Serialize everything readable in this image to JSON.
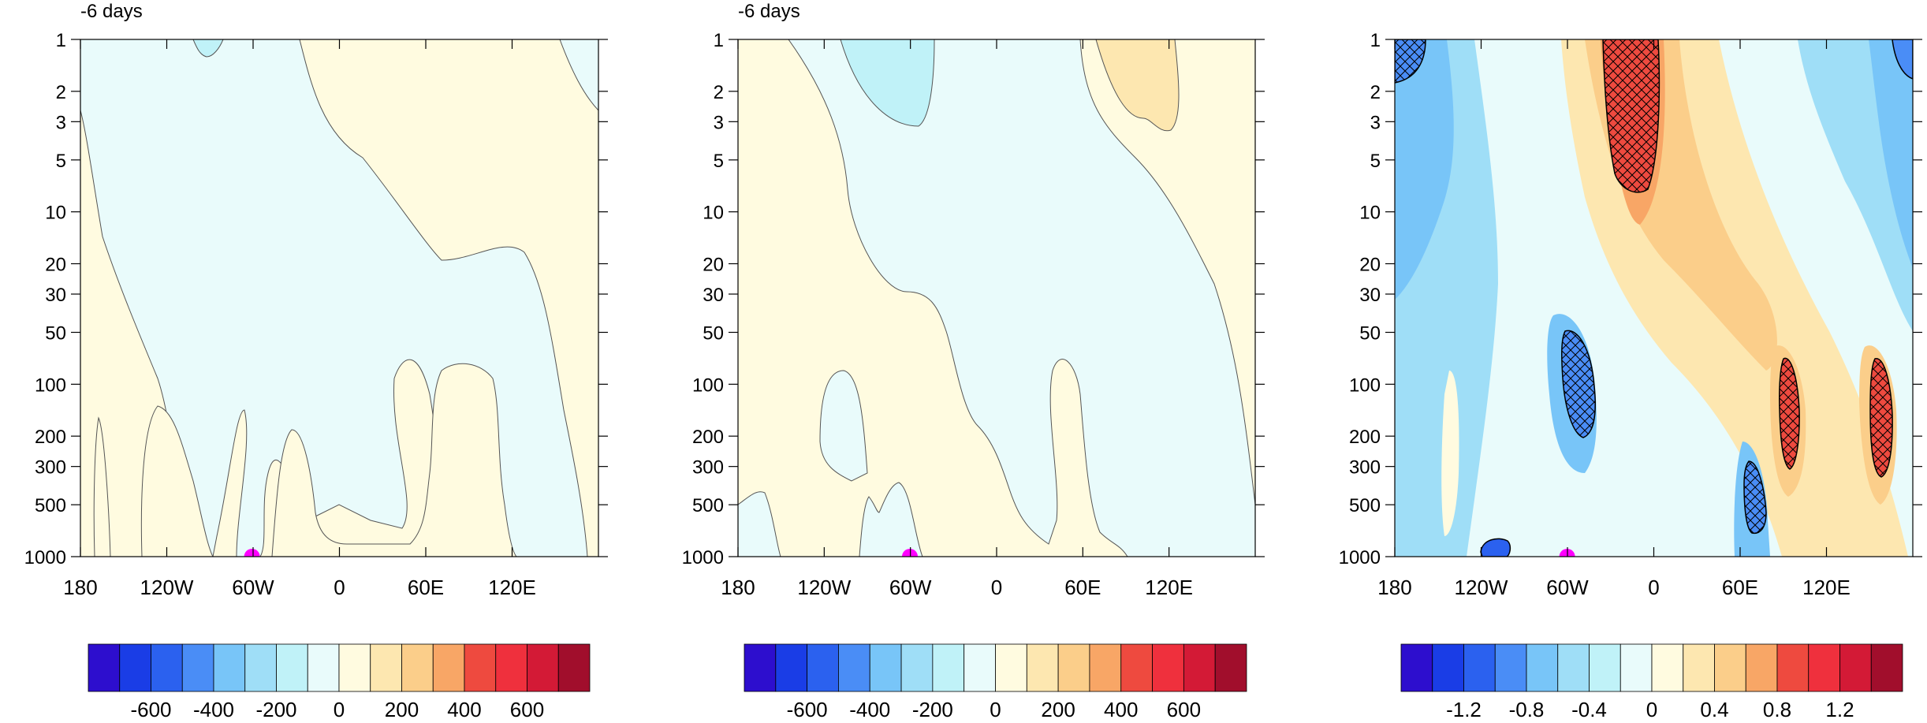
{
  "chart_data": [
    {
      "type": "heatmap",
      "title": "-6 days",
      "x_tick_labels": [
        "180",
        "120W",
        "60W",
        "0",
        "60E",
        "120E"
      ],
      "x_tick_values": [
        -180,
        -120,
        -60,
        0,
        60,
        120
      ],
      "xlim": [
        -180,
        180
      ],
      "y_tick_labels": [
        "1",
        "2",
        "3",
        "5",
        "10",
        "20",
        "30",
        "50",
        "100",
        "200",
        "300",
        "500",
        "1000"
      ],
      "y_tick_values": [
        1,
        2,
        3,
        5,
        10,
        20,
        30,
        50,
        100,
        200,
        300,
        500,
        1000
      ],
      "ylim": [
        1000,
        1
      ],
      "y_scale": "log (pressure, inverted)",
      "marker": {
        "lon": -60,
        "lev": 1000,
        "color": "#ff00ff"
      },
      "colorbar": {
        "levels": [
          -700,
          -600,
          -500,
          -400,
          -300,
          -200,
          -100,
          0,
          100,
          200,
          300,
          400,
          500,
          600,
          700
        ],
        "tick_labels": [
          "-600",
          "-400",
          "-200",
          "0",
          "200",
          "400",
          "600"
        ],
        "tick_values": [
          -600,
          -400,
          -200,
          0,
          200,
          400,
          600
        ]
      },
      "regions": [
        {
          "fill": "light-blue",
          "range": [
            -100,
            0
          ]
        },
        {
          "fill": "light-yellow",
          "range": [
            0,
            100
          ]
        },
        {
          "fill": "blue",
          "range": [
            -200,
            -100
          ]
        }
      ]
    },
    {
      "type": "heatmap",
      "title": "-6 days",
      "x_tick_labels": [
        "180",
        "120W",
        "60W",
        "0",
        "60E",
        "120E"
      ],
      "x_tick_values": [
        -180,
        -120,
        -60,
        0,
        60,
        120
      ],
      "xlim": [
        -180,
        180
      ],
      "y_tick_labels": [
        "1",
        "2",
        "3",
        "5",
        "10",
        "20",
        "30",
        "50",
        "100",
        "200",
        "300",
        "500",
        "1000"
      ],
      "y_tick_values": [
        1,
        2,
        3,
        5,
        10,
        20,
        30,
        50,
        100,
        200,
        300,
        500,
        1000
      ],
      "ylim": [
        1000,
        1
      ],
      "y_scale": "log (pressure, inverted)",
      "marker": {
        "lon": -60,
        "lev": 1000,
        "color": "#ff00ff"
      },
      "colorbar": {
        "levels": [
          -700,
          -600,
          -500,
          -400,
          -300,
          -200,
          -100,
          0,
          100,
          200,
          300,
          400,
          500,
          600,
          700
        ],
        "tick_labels": [
          "-600",
          "-400",
          "-200",
          "0",
          "200",
          "400",
          "600"
        ],
        "tick_values": [
          -600,
          -400,
          -200,
          0,
          200,
          400,
          600
        ]
      },
      "regions": [
        {
          "fill": "light-blue",
          "range": [
            -100,
            0
          ]
        },
        {
          "fill": "light-yellow",
          "range": [
            0,
            100
          ]
        },
        {
          "fill": "blue",
          "range": [
            -200,
            -100
          ]
        },
        {
          "fill": "tan",
          "range": [
            100,
            200
          ]
        }
      ]
    },
    {
      "type": "heatmap",
      "title": "",
      "x_tick_labels": [
        "180",
        "120W",
        "60W",
        "0",
        "60E",
        "120E"
      ],
      "x_tick_values": [
        -180,
        -120,
        -60,
        0,
        60,
        120
      ],
      "xlim": [
        -180,
        180
      ],
      "y_tick_labels": [
        "1",
        "2",
        "3",
        "5",
        "10",
        "20",
        "30",
        "50",
        "100",
        "200",
        "300",
        "500",
        "1000"
      ],
      "y_tick_values": [
        1,
        2,
        3,
        5,
        10,
        20,
        30,
        50,
        100,
        200,
        300,
        500,
        1000
      ],
      "ylim": [
        1000,
        1
      ],
      "y_scale": "log (pressure, inverted)",
      "marker": {
        "lon": -60,
        "lev": 1000,
        "color": "#ff00ff"
      },
      "hatching": "significant regions (cross-hatched, black contour)",
      "colorbar": {
        "levels": [
          -1.4,
          -1.2,
          -1.0,
          -0.8,
          -0.6,
          -0.4,
          -0.2,
          0,
          0.2,
          0.4,
          0.6,
          0.8,
          1.0,
          1.2,
          1.4
        ],
        "tick_labels": [
          "-1.2",
          "-0.8",
          "-0.4",
          "0",
          "0.4",
          "0.8",
          "1.2"
        ],
        "tick_values": [
          -1.2,
          -0.8,
          -0.4,
          0,
          0.4,
          0.8,
          1.2
        ]
      }
    }
  ],
  "colors": {
    "palette": [
      "#2d0ece",
      "#1a3de6",
      "#2b61ef",
      "#4a8df6",
      "#78c5f8",
      "#9fdef7",
      "#c0f2f8",
      "#e9fbfb",
      "#fffbe0",
      "#fde7b0",
      "#fbce8a",
      "#f8a666",
      "#ee4a3f",
      "#ef303d",
      "#d31a36",
      "#a10e2c"
    ],
    "marker": "#ff00ff",
    "contour": "#555555",
    "frame": "#000000"
  }
}
